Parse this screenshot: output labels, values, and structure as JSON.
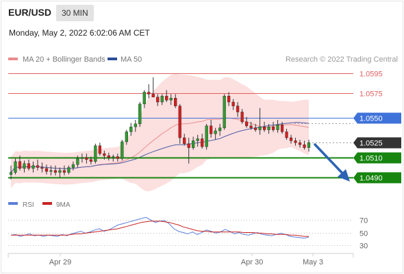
{
  "header": {
    "symbol": "EUR/USD",
    "timeframe": "30 MIN"
  },
  "date_line": "Monday, May 2, 2022 6:02:06 AM CET",
  "legend": {
    "bb": "MA 20 + Bollinger Bands",
    "ma50": "MA 50",
    "credit": "Research © 2022 Trading Central",
    "rsi": "RSI",
    "nine_ma": "9MA"
  },
  "colors": {
    "resistance": "#e15f5f",
    "pivot": "#3f72d9",
    "support": "#17850f",
    "bull": "#2e9b2e",
    "bear": "#d81e1e",
    "band": "#fbd9d9",
    "ma20": "#e89090",
    "ma50": "#4b5fa6",
    "rsi": "#5b7fd8",
    "nine_ma": "#c92323"
  },
  "chart_data": [
    {
      "type": "candlestick",
      "levels": [
        {
          "name": "resistance",
          "label": "1.0595",
          "value": 1.0595
        },
        {
          "name": "resistance",
          "label": "1.0575",
          "value": 1.0575
        },
        {
          "name": "pivot",
          "label": "1.0550",
          "value": 1.055
        },
        {
          "name": "last",
          "label": "1.0525",
          "value": 1.0525
        },
        {
          "name": "support",
          "label": "1.0510",
          "value": 1.051
        },
        {
          "name": "support",
          "label": "1.0490",
          "value": 1.049
        }
      ],
      "x_ticks": [
        "Apr 29",
        "Apr 30",
        "May 3"
      ],
      "series": [
        {
          "name": "MA 20 + Bollinger Bands"
        },
        {
          "name": "MA 50"
        }
      ],
      "candles": [
        [
          1.0493,
          1.0502,
          1.0488,
          1.0495
        ],
        [
          1.0495,
          1.0509,
          1.0493,
          1.0506
        ],
        [
          1.0506,
          1.0512,
          1.0497,
          1.0499
        ],
        [
          1.0499,
          1.0507,
          1.0495,
          1.0504
        ],
        [
          1.0504,
          1.0508,
          1.0497,
          1.0499
        ],
        [
          1.0499,
          1.0506,
          1.0495,
          1.0502
        ],
        [
          1.0502,
          1.0508,
          1.0497,
          1.05
        ],
        [
          1.05,
          1.0505,
          1.0495,
          1.0499
        ],
        [
          1.0499,
          1.0503,
          1.0493,
          1.0496
        ],
        [
          1.0496,
          1.0502,
          1.0492,
          1.0497
        ],
        [
          1.0497,
          1.0502,
          1.0492,
          1.0495
        ],
        [
          1.0495,
          1.05,
          1.049,
          1.0497
        ],
        [
          1.0497,
          1.0502,
          1.0492,
          1.0495
        ],
        [
          1.0495,
          1.0502,
          1.0493,
          1.05
        ],
        [
          1.05,
          1.0506,
          1.0497,
          1.0503
        ],
        [
          1.0503,
          1.0512,
          1.05,
          1.0509
        ],
        [
          1.0509,
          1.0514,
          1.0505,
          1.051
        ],
        [
          1.051,
          1.0514,
          1.0504,
          1.0508
        ],
        [
          1.0508,
          1.0511,
          1.0503,
          1.0506
        ],
        [
          1.0506,
          1.0524,
          1.0504,
          1.0522
        ],
        [
          1.0522,
          1.0525,
          1.0512,
          1.0514
        ],
        [
          1.0514,
          1.0517,
          1.0508,
          1.0512
        ],
        [
          1.0512,
          1.0515,
          1.0507,
          1.051
        ],
        [
          1.051,
          1.0513,
          1.0506,
          1.0511
        ],
        [
          1.0511,
          1.0514,
          1.0506,
          1.0509
        ],
        [
          1.0509,
          1.0528,
          1.0507,
          1.0526
        ],
        [
          1.0526,
          1.0538,
          1.0523,
          1.0536
        ],
        [
          1.0536,
          1.0545,
          1.0532,
          1.0541
        ],
        [
          1.0541,
          1.0548,
          1.0536,
          1.0544
        ],
        [
          1.0544,
          1.0566,
          1.0541,
          1.0564
        ],
        [
          1.0564,
          1.0578,
          1.056,
          1.0576
        ],
        [
          1.0576,
          1.0584,
          1.057,
          1.0574
        ],
        [
          1.0574,
          1.0591,
          1.0571,
          1.0571
        ],
        [
          1.0571,
          1.0574,
          1.0562,
          1.0566
        ],
        [
          1.0566,
          1.0574,
          1.0563,
          1.0572
        ],
        [
          1.0572,
          1.0578,
          1.0566,
          1.0568
        ],
        [
          1.0568,
          1.0574,
          1.0563,
          1.057
        ],
        [
          1.057,
          1.0574,
          1.056,
          1.0562
        ],
        [
          1.0562,
          1.0564,
          1.0524,
          1.053
        ],
        [
          1.053,
          1.0534,
          1.0522,
          1.0524
        ],
        [
          1.0524,
          1.053,
          1.0504,
          1.052
        ],
        [
          1.052,
          1.0531,
          1.0518,
          1.0527
        ],
        [
          1.0527,
          1.0533,
          1.0521,
          1.0529
        ],
        [
          1.0529,
          1.0534,
          1.0519,
          1.0521
        ],
        [
          1.0521,
          1.0544,
          1.0518,
          1.0542
        ],
        [
          1.0542,
          1.0548,
          1.053,
          1.0534
        ],
        [
          1.0534,
          1.054,
          1.0528,
          1.0537
        ],
        [
          1.0537,
          1.0544,
          1.0532,
          1.054
        ],
        [
          1.054,
          1.0574,
          1.0538,
          1.0572
        ],
        [
          1.0572,
          1.0576,
          1.0562,
          1.0566
        ],
        [
          1.0566,
          1.0569,
          1.0558,
          1.0562
        ],
        [
          1.0562,
          1.0566,
          1.0551,
          1.0556
        ],
        [
          1.0556,
          1.0559,
          1.0544,
          1.0546
        ],
        [
          1.0546,
          1.0551,
          1.054,
          1.0542
        ],
        [
          1.0542,
          1.0546,
          1.0538,
          1.054
        ],
        [
          1.054,
          1.0544,
          1.0536,
          1.0538
        ],
        [
          1.0538,
          1.056,
          1.0533,
          1.0541
        ],
        [
          1.0541,
          1.0546,
          1.0536,
          1.0538
        ],
        [
          1.0538,
          1.0544,
          1.0534,
          1.0541
        ],
        [
          1.0541,
          1.0546,
          1.0536,
          1.0538
        ],
        [
          1.0538,
          1.0548,
          1.0535,
          1.0543
        ],
        [
          1.0543,
          1.0546,
          1.0534,
          1.0536
        ],
        [
          1.0536,
          1.0539,
          1.0528,
          1.053
        ],
        [
          1.053,
          1.0533,
          1.0524,
          1.0527
        ],
        [
          1.0527,
          1.053,
          1.0522,
          1.0525
        ],
        [
          1.0525,
          1.0528,
          1.052,
          1.0523
        ],
        [
          1.0523,
          1.0527,
          1.0518,
          1.052
        ],
        [
          1.052,
          1.0528,
          1.0516,
          1.0525
        ]
      ]
    },
    {
      "type": "line",
      "y_ticks": [
        "70",
        "50",
        "30"
      ],
      "series": [
        {
          "name": "RSI",
          "values": [
            46,
            47,
            44,
            46,
            48,
            45,
            46,
            44,
            46,
            45,
            44,
            47,
            45,
            48,
            50,
            52,
            49,
            51,
            54,
            56,
            52,
            54,
            58,
            62,
            64,
            66,
            68,
            70,
            72,
            74,
            70,
            66,
            68,
            69,
            64,
            56,
            52,
            50,
            48,
            51,
            47,
            50,
            54,
            52,
            49,
            51,
            55,
            52,
            48,
            50,
            47,
            46,
            48,
            50,
            47,
            46,
            45,
            47,
            49,
            47,
            44,
            43,
            42,
            41,
            43
          ]
        },
        {
          "name": "9MA",
          "values": [
            46,
            46,
            46,
            46,
            46,
            46,
            46,
            46,
            46,
            46,
            46,
            46,
            46,
            47,
            48,
            48,
            49,
            50,
            51,
            52,
            53,
            54,
            55,
            56,
            58,
            60,
            62,
            64,
            66,
            67,
            68,
            68,
            68,
            67,
            66,
            64,
            62,
            59,
            57,
            55,
            53,
            52,
            52,
            51,
            51,
            51,
            51,
            51,
            51,
            51,
            50,
            50,
            50,
            49,
            49,
            48,
            48,
            47,
            47,
            47,
            46,
            46,
            45,
            44,
            44
          ]
        }
      ]
    }
  ]
}
